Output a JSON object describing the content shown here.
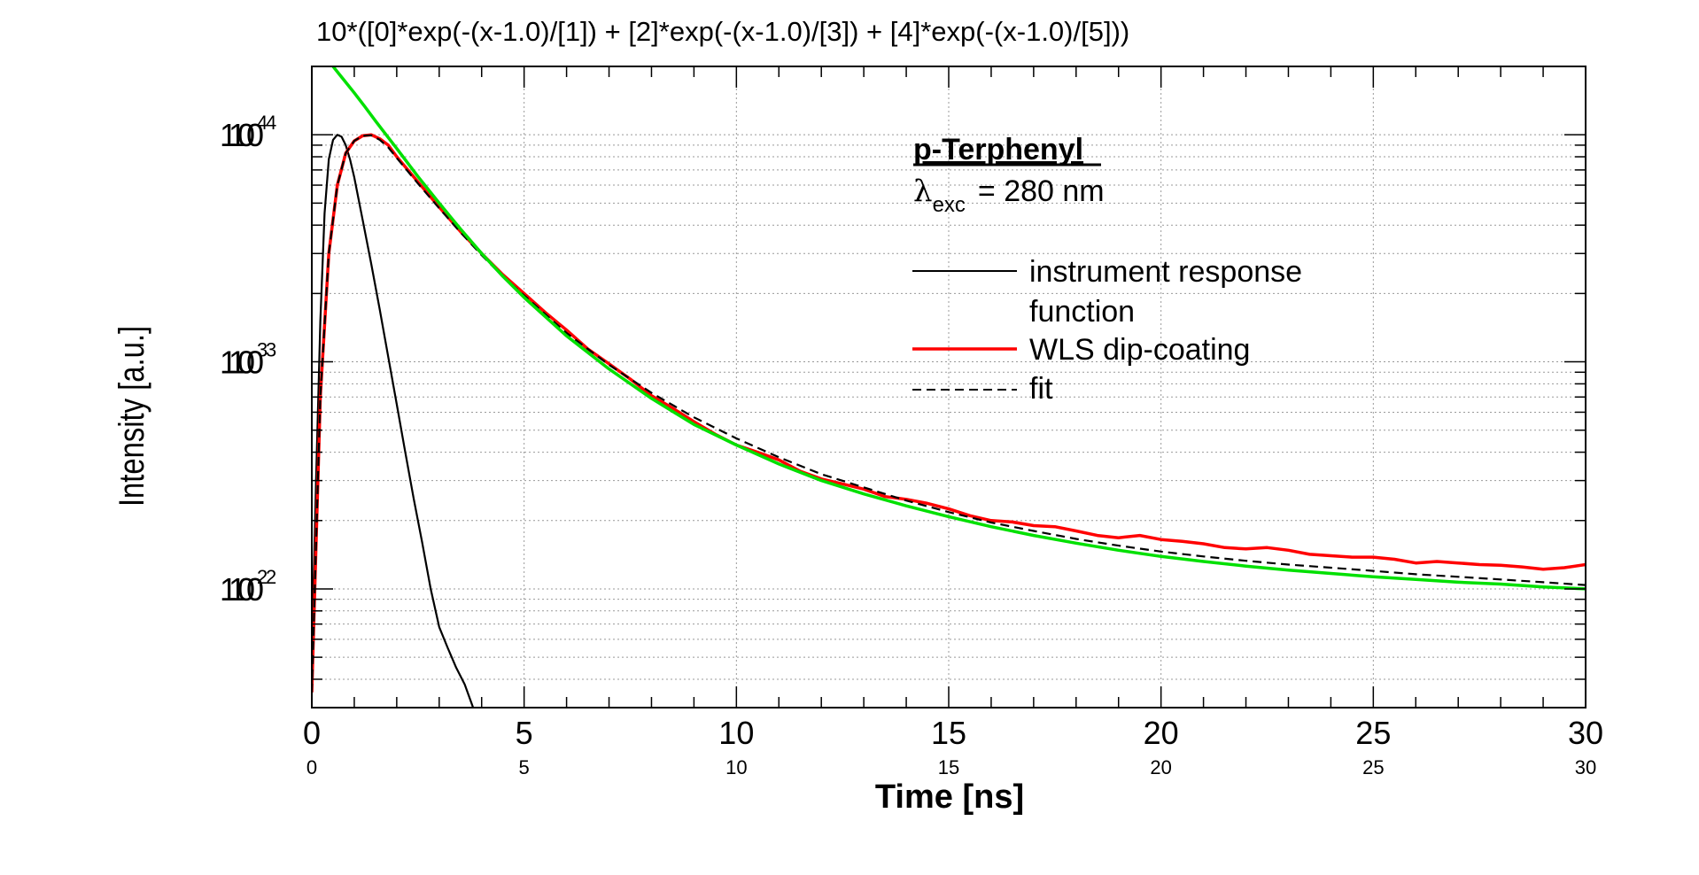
{
  "chart_data": {
    "type": "line",
    "title": "10*([0]*exp(-(x-1.0)/[1]) + [2]*exp(-(x-1.0)/[3]) + [4]*exp(-(x-1.0)/[5]))",
    "xlabel": "Time [ns]",
    "ylabel": "Intensity [a.u.]",
    "xlim": [
      0,
      30
    ],
    "ylim": [
      30,
      20000
    ],
    "y_scale": "log",
    "x_ticks": [
      0,
      5,
      10,
      15,
      20,
      25,
      30
    ],
    "x_tick_labels": [
      "0",
      "5",
      "10",
      "15",
      "20",
      "25",
      "30"
    ],
    "y_ticks": [
      100,
      1000,
      10000
    ],
    "y_tick_base": "10",
    "y_tick_exponents": [
      "2",
      "3",
      "4"
    ],
    "grid": true,
    "annotation": {
      "title": "p-Terphenyl",
      "lambda_symbol": "λ",
      "lambda_subscript": "exc",
      "lambda_value": "= 280 nm"
    },
    "legend": {
      "placement": "top-right",
      "entries": [
        {
          "line1": "instrument response",
          "line2": "function",
          "color": "#000000",
          "style": "solid"
        },
        {
          "line1": "WLS dip-coating",
          "line2": "",
          "color": "#ff0000",
          "style": "solid"
        },
        {
          "line1": "fit",
          "line2": "",
          "color": "#000000",
          "style": "dashed"
        }
      ]
    },
    "series": [
      {
        "id": "irf",
        "color": "#000000",
        "x": [
          0,
          0.1,
          0.2,
          0.3,
          0.4,
          0.5,
          0.6,
          0.7,
          0.8,
          0.9,
          1.0,
          1.2,
          1.4,
          1.6,
          1.8,
          2.0,
          2.2,
          2.4,
          2.6,
          2.8,
          3.0,
          3.2,
          3.4,
          3.6,
          3.8
        ],
        "y": [
          50,
          300,
          1500,
          4500,
          7800,
          9500,
          10000,
          9800,
          9000,
          7800,
          6500,
          4200,
          2700,
          1700,
          1050,
          650,
          400,
          250,
          160,
          100,
          68,
          55,
          45,
          38,
          30
        ]
      },
      {
        "id": "data",
        "color": "#ff0000",
        "x": [
          0,
          0.2,
          0.4,
          0.6,
          0.8,
          1.0,
          1.2,
          1.4,
          1.6,
          1.8,
          2.0,
          2.5,
          3,
          3.5,
          4,
          4.5,
          5,
          5.5,
          6,
          6.5,
          7,
          7.5,
          8,
          8.5,
          9,
          9.5,
          10,
          10.5,
          11,
          11.5,
          12,
          12.5,
          13,
          13.5,
          14,
          14.5,
          15,
          15.5,
          16,
          16.5,
          17,
          17.5,
          18,
          18.5,
          19,
          19.5,
          20,
          20.5,
          21,
          21.5,
          22,
          22.5,
          23,
          23.5,
          24,
          24.5,
          25,
          25.5,
          26,
          26.5,
          27,
          27.5,
          28,
          28.5,
          29,
          29.5,
          30
        ],
        "y": [
          35,
          700,
          3000,
          6000,
          8300,
          9400,
          9900,
          10000,
          9600,
          9000,
          8000,
          6200,
          4800,
          3750,
          3000,
          2420,
          2000,
          1650,
          1380,
          1140,
          980,
          840,
          710,
          625,
          545,
          480,
          430,
          400,
          370,
          330,
          305,
          290,
          275,
          255,
          248,
          238,
          225,
          210,
          200,
          197,
          190,
          188,
          180,
          172,
          168,
          172,
          165,
          162,
          158,
          152,
          150,
          152,
          148,
          142,
          140,
          138,
          138,
          135,
          130,
          132,
          130,
          128,
          127,
          125,
          122,
          124,
          128
        ]
      },
      {
        "id": "fit",
        "color": "#000000",
        "style": "dashed",
        "x": [
          0,
          0.2,
          0.4,
          0.6,
          0.8,
          1.0,
          1.2,
          1.4,
          1.6,
          1.8,
          2.0,
          2.5,
          3,
          3.5,
          4,
          4.5,
          5,
          6,
          7,
          8,
          9,
          10,
          11,
          12,
          13,
          14,
          15,
          16,
          17,
          18,
          19,
          20,
          21,
          22,
          23,
          24,
          25,
          26,
          27,
          28,
          29,
          30
        ],
        "y": [
          35,
          700,
          3000,
          6000,
          8300,
          9400,
          9900,
          9950,
          9500,
          8800,
          7900,
          6100,
          4750,
          3720,
          2950,
          2380,
          1960,
          1340,
          970,
          730,
          570,
          460,
          380,
          320,
          280,
          245,
          218,
          196,
          180,
          166,
          155,
          146,
          139,
          133,
          128,
          124,
          120,
          116,
          113,
          110,
          107,
          104
        ]
      },
      {
        "id": "green",
        "color": "#00e000",
        "x": [
          0.5,
          0.75,
          1.0,
          1.25,
          1.5,
          1.75,
          2.0,
          2.5,
          3,
          3.5,
          4,
          4.5,
          5,
          6,
          7,
          8,
          9,
          10,
          11,
          12,
          13,
          14,
          15,
          16,
          17,
          18,
          19,
          20,
          21,
          22,
          23,
          24,
          25,
          26,
          27,
          28,
          29,
          30
        ],
        "y": [
          20000,
          17500,
          15300,
          13300,
          11500,
          10000,
          8700,
          6550,
          5000,
          3850,
          3000,
          2380,
          1920,
          1300,
          930,
          690,
          530,
          430,
          355,
          300,
          262,
          232,
          208,
          188,
          172,
          159,
          148,
          139,
          132,
          126,
          121,
          117,
          113,
          110,
          107,
          105,
          102,
          100
        ]
      }
    ]
  }
}
